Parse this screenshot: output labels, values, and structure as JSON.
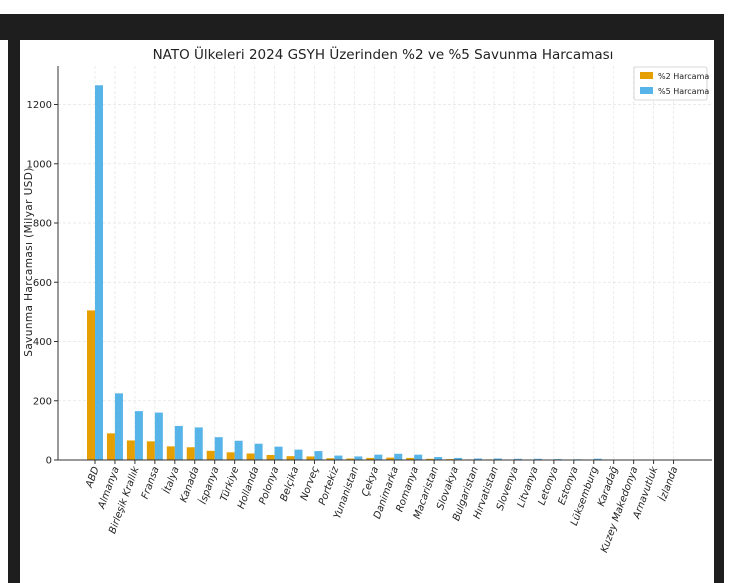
{
  "chart_data": {
    "type": "bar",
    "title": "NATO Ülkeleri 2024 GSYH Üzerinden %2 ve %5 Savunma Harcaması",
    "xlabel": "",
    "ylabel": "Savunma Harcaması (Milyar USD)",
    "ylim": [
      0,
      1330
    ],
    "yticks": [
      0,
      200,
      400,
      600,
      800,
      1000,
      1200
    ],
    "grid": true,
    "legend_position": "top-right",
    "categories": [
      "ABD",
      "Almanya",
      "Birleşik Krallık",
      "Fransa",
      "İtalya",
      "Kanada",
      "İspanya",
      "Türkiye",
      "Hollanda",
      "Polonya",
      "Belçika",
      "Norveç",
      "Portekiz",
      "Yunanistan",
      "Çekya",
      "Danimarka",
      "Romanya",
      "Macaristan",
      "Slovakya",
      "Bulgaristan",
      "Hırvatistan",
      "Slovenya",
      "Litvanya",
      "Letonya",
      "Estonya",
      "Lüksemburg",
      "Karadağ",
      "Kuzey Makedonya",
      "Arnavutluk",
      "İzlanda"
    ],
    "series": [
      {
        "name": "%2 Harcama",
        "color": "#e69f00",
        "values": [
          505,
          90,
          66,
          63,
          46,
          43,
          31,
          26,
          22,
          17,
          13,
          12,
          6,
          5,
          7,
          8,
          7,
          4,
          3,
          2,
          2,
          1.5,
          1.5,
          1,
          1,
          1.7,
          0.2,
          0.3,
          0.5,
          0.7
        ]
      },
      {
        "name": "%5 Harcama",
        "color": "#56b4e9",
        "values": [
          1265,
          225,
          165,
          160,
          115,
          110,
          77,
          65,
          55,
          45,
          35,
          30,
          15,
          12,
          18,
          21,
          18,
          10,
          7,
          5,
          5,
          4,
          4,
          3,
          2.5,
          4.3,
          0.5,
          0.8,
          1.3,
          1.8
        ]
      }
    ]
  }
}
